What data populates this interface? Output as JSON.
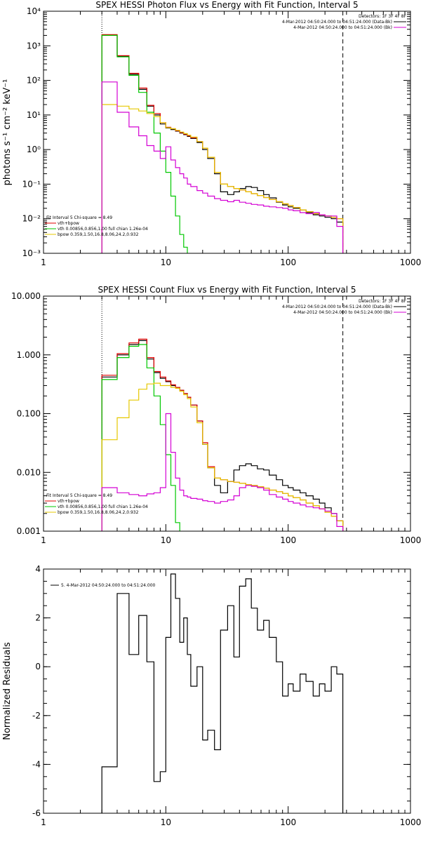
{
  "chart_data": [
    {
      "type": "line",
      "title": "SPEX HESSI Photon Flux vs Energy with Fit Function, Interval 5",
      "ylabel": "photons s⁻¹ cm⁻² keV⁻¹",
      "xlabel": "",
      "x_scale": "log",
      "y_scale": "log",
      "xlim": [
        1,
        1000
      ],
      "ylim": [
        0.001,
        10000
      ],
      "x_ticks": [
        1,
        10,
        100,
        1000
      ],
      "x_tick_labels": [
        "1",
        "10",
        "100",
        "1000"
      ],
      "y_ticks": [
        0.001,
        0.01,
        0.1,
        1,
        10,
        100,
        1000,
        10000
      ],
      "y_tick_labels": [
        "10⁻³",
        "10⁻²",
        "10⁻¹",
        "10⁰",
        "10¹",
        "10²",
        "10³",
        "10⁴"
      ],
      "vlines": [
        {
          "x": 3,
          "style": "dotted"
        },
        {
          "x": 280,
          "style": "dashed"
        }
      ],
      "legend_right": [
        {
          "text": "Detectors: 1F 3F 4F 8F",
          "color": "#000000"
        },
        {
          "text": "4-Mar-2012 04:50:24.000 to 04:51:24.000 (Data-Bk)",
          "color": "#000000"
        },
        {
          "text": "4-Mar-2012 04:50:24.000 to 04:51:24.000 (Bk)",
          "color": "#d400d4"
        }
      ],
      "legend_left": [
        {
          "text": "Fit Interval 5   Chi-square = 8.49",
          "color": "#000000"
        },
        {
          "text": "vth+bpow",
          "color": "#e00000"
        },
        {
          "text": "vth 0.00856,0.856,1.00  full chian 1.26e-04",
          "color": "#00c800"
        },
        {
          "text": "bpow 0.359,1.50,16.8,8.06,24.2,0.932",
          "color": "#e6c800"
        }
      ],
      "x_edges": [
        3,
        4,
        5,
        6,
        7,
        8,
        9,
        10,
        11,
        12,
        13,
        14,
        15,
        16,
        18,
        20,
        22,
        25,
        28,
        32,
        36,
        40,
        45,
        50,
        56,
        63,
        70,
        80,
        90,
        100,
        110,
        125,
        140,
        160,
        180,
        200,
        225,
        250,
        280
      ],
      "series": [
        {
          "name": "Data-Bk",
          "color": "#000000",
          "values": [
            2000,
            500,
            150,
            55,
            18,
            10,
            5.5,
            4.2,
            3.8,
            3.4,
            3.0,
            2.7,
            2.4,
            2.1,
            1.6,
            1.0,
            0.55,
            0.2,
            0.06,
            0.05,
            0.06,
            0.075,
            0.085,
            0.08,
            0.065,
            0.05,
            0.04,
            0.03,
            0.025,
            0.022,
            0.02,
            0.018,
            0.015,
            0.013,
            0.012,
            0.011,
            0.01,
            0.008
          ]
        },
        {
          "name": "vth+bpow",
          "color": "#e00000",
          "values": [
            2100,
            520,
            160,
            60,
            19,
            11,
            6,
            4.4,
            4.0,
            3.5,
            3.1,
            2.8,
            2.5,
            2.2,
            1.7,
            1.1,
            0.6,
            0.22,
            0.1,
            0.085,
            0.075,
            0.068,
            0.06,
            0.053,
            0.047,
            0.041,
            0.036,
            0.031,
            0.027,
            0.024,
            0.021,
            0.018,
            0.016,
            0.014,
            0.013,
            0.012,
            0.011,
            0.01
          ]
        },
        {
          "name": "vth",
          "color": "#00c800",
          "values": [
            2000,
            480,
            140,
            45,
            12,
            3,
            0.9,
            0.22,
            0.045,
            0.012,
            0.0035,
            0.0015
          ]
        },
        {
          "name": "bpow",
          "color": "#e6c800",
          "values": [
            20,
            18,
            15,
            13,
            11,
            9,
            6,
            4.3,
            4.0,
            3.6,
            3.2,
            2.9,
            2.6,
            2.3,
            1.7,
            1.1,
            0.6,
            0.22,
            0.1,
            0.085,
            0.075,
            0.068,
            0.06,
            0.053,
            0.047,
            0.041,
            0.036,
            0.031,
            0.027,
            0.024,
            0.021,
            0.018,
            0.016,
            0.014,
            0.013,
            0.012,
            0.011,
            0.01
          ]
        },
        {
          "name": "Bk",
          "color": "#d400d4",
          "values": [
            90,
            12,
            4.5,
            2.5,
            1.3,
            0.9,
            0.55,
            1.2,
            0.5,
            0.3,
            0.2,
            0.15,
            0.1,
            0.085,
            0.065,
            0.055,
            0.045,
            0.038,
            0.034,
            0.031,
            0.034,
            0.03,
            0.028,
            0.026,
            0.025,
            0.023,
            0.022,
            0.021,
            0.02,
            0.018,
            0.017,
            0.015,
            0.014,
            0.015,
            0.013,
            0.012,
            0.012,
            0.006
          ]
        }
      ]
    },
    {
      "type": "line",
      "title": "SPEX HESSI Count Flux vs Energy with Fit Function, Interval 5",
      "xlabel": "",
      "ylabel": "",
      "x_scale": "log",
      "y_scale": "log",
      "xlim": [
        1,
        1000
      ],
      "ylim": [
        0.001,
        10
      ],
      "x_ticks": [
        1,
        10,
        100,
        1000
      ],
      "x_tick_labels": [
        "1",
        "10",
        "100",
        "1000"
      ],
      "y_ticks": [
        0.001,
        0.01,
        0.1,
        1,
        10
      ],
      "y_tick_labels": [
        "0.001",
        "0.010",
        "0.100",
        "1.000",
        "10.000"
      ],
      "vlines": [
        {
          "x": 3,
          "style": "dotted"
        },
        {
          "x": 280,
          "style": "dashed"
        }
      ],
      "legend_right": [
        {
          "text": "Detectors: 1F 3F 4F 8F",
          "color": "#000000"
        },
        {
          "text": "4-Mar-2012 04:50:24.000 to 04:51:24.000 (Data-Bk)",
          "color": "#000000"
        },
        {
          "text": "4-Mar-2012 04:50:24.000 to 04:51:24.000 (Bk)",
          "color": "#d400d4"
        }
      ],
      "legend_left": [
        {
          "text": "Fit Interval 5   Chi-square = 8.49",
          "color": "#000000"
        },
        {
          "text": "vth+bpow",
          "color": "#e00000"
        },
        {
          "text": "vth 0.00856,0.856,1.00  full chian 1.26e-04",
          "color": "#00c800"
        },
        {
          "text": "bpow 0.359,1.50,16.8,8.06,24.2,0.932",
          "color": "#e6c800"
        }
      ],
      "x_edges": [
        3,
        4,
        5,
        6,
        7,
        8,
        9,
        10,
        11,
        12,
        13,
        14,
        15,
        16,
        18,
        20,
        22,
        25,
        28,
        32,
        36,
        40,
        45,
        50,
        56,
        63,
        70,
        80,
        90,
        100,
        110,
        125,
        140,
        160,
        180,
        200,
        225,
        250,
        280
      ],
      "series": [
        {
          "name": "Data-Bk",
          "color": "#000000",
          "values": [
            0.42,
            1.0,
            1.5,
            1.75,
            0.85,
            0.5,
            0.4,
            0.35,
            0.3,
            0.28,
            0.25,
            0.22,
            0.19,
            0.14,
            0.075,
            0.03,
            0.012,
            0.006,
            0.0045,
            0.007,
            0.011,
            0.013,
            0.014,
            0.013,
            0.0115,
            0.011,
            0.009,
            0.0075,
            0.006,
            0.0055,
            0.005,
            0.0045,
            0.004,
            0.0035,
            0.003,
            0.0025,
            0.002,
            0.0015
          ]
        },
        {
          "name": "vth+bpow",
          "color": "#e00000",
          "values": [
            0.45,
            1.05,
            1.6,
            1.85,
            0.9,
            0.52,
            0.42,
            0.36,
            0.31,
            0.28,
            0.25,
            0.22,
            0.19,
            0.14,
            0.075,
            0.032,
            0.0125,
            0.008,
            0.0075,
            0.007,
            0.0068,
            0.0065,
            0.0062,
            0.006,
            0.0057,
            0.0054,
            0.005,
            0.0047,
            0.0044,
            0.004,
            0.0037,
            0.0034,
            0.003,
            0.0027,
            0.0024,
            0.0021,
            0.0018,
            0.0015
          ]
        },
        {
          "name": "vth",
          "color": "#00c800",
          "values": [
            0.38,
            0.9,
            1.4,
            1.5,
            0.6,
            0.2,
            0.065,
            0.02,
            0.006,
            0.0014
          ]
        },
        {
          "name": "bpow",
          "color": "#e6c800",
          "values": [
            0.036,
            0.085,
            0.17,
            0.26,
            0.32,
            0.33,
            0.3,
            0.3,
            0.28,
            0.27,
            0.24,
            0.21,
            0.18,
            0.13,
            0.07,
            0.03,
            0.012,
            0.008,
            0.0075,
            0.007,
            0.0068,
            0.0065,
            0.0062,
            0.006,
            0.0057,
            0.0054,
            0.005,
            0.0047,
            0.0044,
            0.004,
            0.0037,
            0.0034,
            0.003,
            0.0027,
            0.0024,
            0.0021,
            0.0018,
            0.0015
          ]
        },
        {
          "name": "Bk",
          "color": "#d400d4",
          "values": [
            0.0055,
            0.0045,
            0.0042,
            0.004,
            0.0043,
            0.0045,
            0.0055,
            0.1,
            0.022,
            0.008,
            0.005,
            0.004,
            0.0038,
            0.0036,
            0.0035,
            0.0033,
            0.0032,
            0.003,
            0.0032,
            0.0034,
            0.004,
            0.0055,
            0.006,
            0.0058,
            0.0055,
            0.005,
            0.0042,
            0.0038,
            0.0035,
            0.0032,
            0.003,
            0.0028,
            0.0026,
            0.0025,
            0.0024,
            0.0022,
            0.002,
            0.0012
          ]
        }
      ]
    },
    {
      "type": "line",
      "title": "",
      "ylabel": "Normalized Residuals",
      "xlabel": "",
      "x_scale": "log",
      "y_scale": "linear",
      "xlim": [
        1,
        1000
      ],
      "ylim": [
        -6,
        4
      ],
      "x_ticks": [
        1,
        10,
        100,
        1000
      ],
      "x_tick_labels": [
        "1",
        "10",
        "100",
        "1000"
      ],
      "y_ticks": [
        -6,
        -4,
        -2,
        0,
        2,
        4
      ],
      "y_tick_labels": [
        "-6",
        "-4",
        "-2",
        "0",
        "2",
        "4"
      ],
      "legend_left": [
        {
          "text": "5.  4-Mar-2012 04:50:24.000 to 04:51:24.000",
          "color": "#000000"
        }
      ],
      "x_edges": [
        3,
        4,
        5,
        6,
        7,
        8,
        9,
        10,
        11,
        12,
        13,
        14,
        15,
        16,
        18,
        20,
        22,
        25,
        28,
        32,
        36,
        40,
        45,
        50,
        56,
        63,
        70,
        80,
        90,
        100,
        110,
        125,
        140,
        160,
        180,
        200,
        225,
        250,
        280
      ],
      "series": [
        {
          "name": "",
          "color": "#000000",
          "values": [
            -4.1,
            3.0,
            0.5,
            2.1,
            0.2,
            -4.7,
            -4.3,
            1.2,
            3.8,
            2.8,
            1.0,
            2.0,
            0.5,
            -0.8,
            0.0,
            -3.0,
            -2.6,
            -3.4,
            1.5,
            2.5,
            0.4,
            3.3,
            3.6,
            2.4,
            1.5,
            1.9,
            1.2,
            0.2,
            -1.2,
            -0.7,
            -1.0,
            -0.3,
            -0.6,
            -1.2,
            -0.7,
            -1.0,
            0.0,
            -0.3
          ]
        }
      ]
    }
  ]
}
